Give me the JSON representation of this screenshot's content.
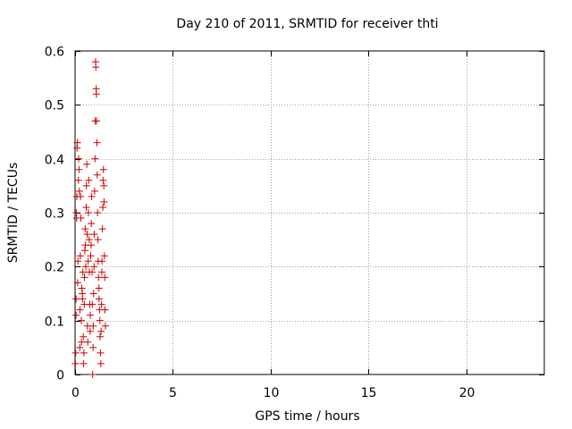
{
  "chart_data": {
    "type": "scatter",
    "title": "Day 210 of 2011, SRMTID for receiver thti",
    "xlabel": "GPS time / hours",
    "ylabel": "SRMTID / TECUs",
    "xlim": [
      0,
      24
    ],
    "ylim": [
      0,
      0.6
    ],
    "xticks": [
      0,
      5,
      10,
      15,
      20
    ],
    "yticks": [
      0,
      0.1,
      0.2,
      0.3,
      0.4,
      0.5,
      0.6
    ],
    "xtick_labels": [
      "0",
      "5",
      "10",
      "15",
      "20"
    ],
    "ytick_labels": [
      "0",
      "0.1",
      "0.2",
      "0.3",
      "0.4",
      "0.5",
      "0.6"
    ],
    "grid": true,
    "marker": "+",
    "series": [
      {
        "name": "SRMTID",
        "color": "#cc0000",
        "points": [
          [
            0.02,
            0.02
          ],
          [
            0.03,
            0.04
          ],
          [
            0.05,
            0.11
          ],
          [
            0.05,
            0.14
          ],
          [
            0.06,
            0.3
          ],
          [
            0.08,
            0.29
          ],
          [
            0.09,
            0.33
          ],
          [
            0.1,
            0.42
          ],
          [
            0.12,
            0.43
          ],
          [
            0.13,
            0.17
          ],
          [
            0.15,
            0.21
          ],
          [
            0.17,
            0.36
          ],
          [
            0.18,
            0.4
          ],
          [
            0.2,
            0.38
          ],
          [
            0.22,
            0.34
          ],
          [
            0.24,
            0.05
          ],
          [
            0.25,
            0.12
          ],
          [
            0.27,
            0.22
          ],
          [
            0.28,
            0.33
          ],
          [
            0.3,
            0.29
          ],
          [
            0.32,
            0.1
          ],
          [
            0.33,
            0.06
          ],
          [
            0.35,
            0.16
          ],
          [
            0.37,
            0.15
          ],
          [
            0.38,
            0.14
          ],
          [
            0.4,
            0.19
          ],
          [
            0.42,
            0.07
          ],
          [
            0.43,
            0.02
          ],
          [
            0.45,
            0.04
          ],
          [
            0.47,
            0.13
          ],
          [
            0.48,
            0.18
          ],
          [
            0.5,
            0.23
          ],
          [
            0.52,
            0.27
          ],
          [
            0.53,
            0.24
          ],
          [
            0.55,
            0.2
          ],
          [
            0.57,
            0.31
          ],
          [
            0.58,
            0.35
          ],
          [
            0.6,
            0.39
          ],
          [
            0.62,
            0.26
          ],
          [
            0.63,
            0.09
          ],
          [
            0.65,
            0.06
          ],
          [
            0.67,
            0.21
          ],
          [
            0.68,
            0.3
          ],
          [
            0.7,
            0.36
          ],
          [
            0.72,
            0.25
          ],
          [
            0.73,
            0.19
          ],
          [
            0.75,
            0.13
          ],
          [
            0.77,
            0.08
          ],
          [
            0.78,
            0.11
          ],
          [
            0.8,
            0.22
          ],
          [
            0.82,
            0.24
          ],
          [
            0.83,
            0.28
          ],
          [
            0.85,
            0.33
          ],
          [
            0.87,
            0.19
          ],
          [
            0.88,
            0.13
          ],
          [
            0.9,
            0.0
          ],
          [
            0.92,
            0.05
          ],
          [
            0.93,
            0.09
          ],
          [
            0.95,
            0.15
          ],
          [
            0.97,
            0.2
          ],
          [
            0.98,
            0.26
          ],
          [
            1.0,
            0.34
          ],
          [
            1.02,
            0.4
          ],
          [
            1.03,
            0.47
          ],
          [
            1.05,
            0.58
          ],
          [
            1.06,
            0.57
          ],
          [
            1.08,
            0.53
          ],
          [
            1.09,
            0.52
          ],
          [
            1.1,
            0.47
          ],
          [
            1.12,
            0.43
          ],
          [
            1.13,
            0.37
          ],
          [
            1.15,
            0.3
          ],
          [
            1.17,
            0.25
          ],
          [
            1.18,
            0.21
          ],
          [
            1.2,
            0.18
          ],
          [
            1.22,
            0.16
          ],
          [
            1.23,
            0.14
          ],
          [
            1.25,
            0.12
          ],
          [
            1.27,
            0.1
          ],
          [
            1.28,
            0.07
          ],
          [
            1.3,
            0.04
          ],
          [
            1.32,
            0.02
          ],
          [
            1.33,
            0.08
          ],
          [
            1.35,
            0.13
          ],
          [
            1.37,
            0.19
          ],
          [
            1.38,
            0.21
          ],
          [
            1.4,
            0.27
          ],
          [
            1.42,
            0.31
          ],
          [
            1.43,
            0.36
          ],
          [
            1.45,
            0.38
          ],
          [
            1.47,
            0.35
          ],
          [
            1.48,
            0.32
          ],
          [
            1.5,
            0.22
          ],
          [
            1.52,
            0.18
          ],
          [
            1.53,
            0.12
          ],
          [
            1.55,
            0.09
          ]
        ]
      }
    ]
  }
}
